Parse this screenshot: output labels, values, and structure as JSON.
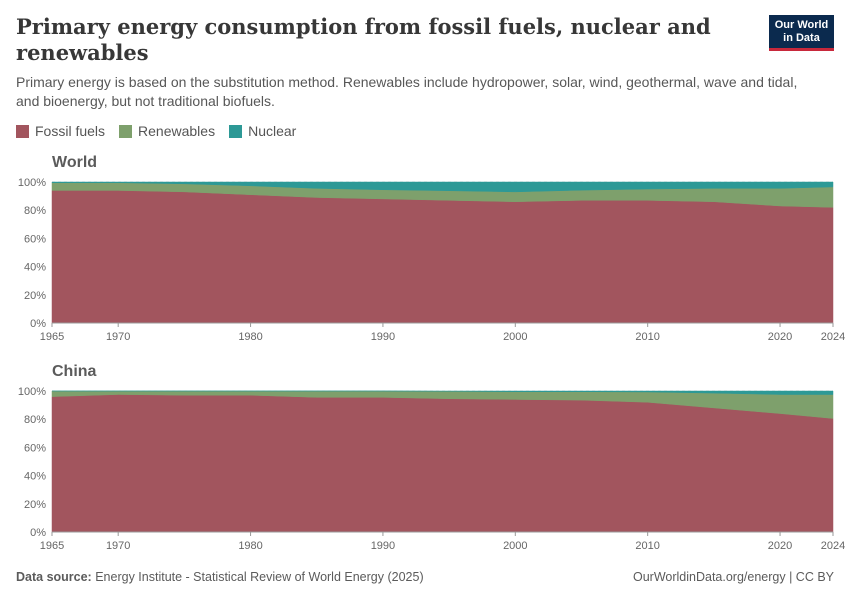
{
  "header": {
    "title": "Primary energy consumption from fossil fuels, nuclear and renewables",
    "subtitle": "Primary energy is based on the substitution method. Renewables include hydropower, solar, wind, geothermal, wave and tidal, and bioenergy, but not traditional biofuels.",
    "logo_line1": "Our World",
    "logo_line2": "in Data"
  },
  "footer": {
    "source_label": "Data source:",
    "source_text": "Energy Institute - Statistical Review of World Energy (2025)",
    "credit": "OurWorldinData.org/energy | CC BY"
  },
  "chart_data": [
    {
      "type": "area",
      "stacked": true,
      "panel_title": "World",
      "x": [
        1965,
        1970,
        1975,
        1980,
        1985,
        1990,
        1995,
        2000,
        2005,
        2010,
        2015,
        2020,
        2024
      ],
      "series": [
        {
          "name": "Fossil fuels",
          "color": "#a2555e",
          "values": [
            94,
            94,
            93,
            91,
            89,
            88,
            87,
            86,
            87,
            87,
            86,
            83,
            82
          ]
        },
        {
          "name": "Renewables",
          "color": "#7ea06c",
          "values": [
            5.5,
            5.5,
            5.7,
            6.3,
            6.5,
            6.5,
            6.8,
            7.0,
            7.2,
            8.0,
            9.5,
            12.5,
            14.5
          ]
        },
        {
          "name": "Nuclear",
          "color": "#2d9996",
          "values": [
            0.5,
            0.5,
            1.3,
            2.7,
            4.5,
            5.5,
            6.2,
            7.0,
            5.8,
            5.0,
            4.5,
            4.5,
            3.5
          ]
        }
      ],
      "ylim": [
        0,
        100
      ],
      "yticks": [
        "0%",
        "20%",
        "40%",
        "60%",
        "80%",
        "100%"
      ],
      "xticks": [
        "1965",
        "1970",
        "1980",
        "1990",
        "2000",
        "2010",
        "2020",
        "2024"
      ]
    },
    {
      "type": "area",
      "stacked": true,
      "panel_title": "China",
      "x": [
        1965,
        1970,
        1975,
        1980,
        1985,
        1990,
        1995,
        2000,
        2005,
        2010,
        2015,
        2020,
        2024
      ],
      "series": [
        {
          "name": "Fossil fuels",
          "color": "#a2555e",
          "values": [
            96,
            97.5,
            97,
            97,
            95.5,
            95.5,
            94.5,
            94,
            93.5,
            92,
            88,
            84,
            80.5
          ]
        },
        {
          "name": "Renewables",
          "color": "#7ea06c",
          "values": [
            4,
            2.5,
            3,
            3,
            4.5,
            4.5,
            5.3,
            5.5,
            6,
            7.3,
            10.5,
            13.5,
            17
          ]
        },
        {
          "name": "Nuclear",
          "color": "#2d9996",
          "values": [
            0,
            0,
            0,
            0,
            0,
            0,
            0.2,
            0.5,
            0.5,
            0.7,
            1.5,
            2.5,
            2.5
          ]
        }
      ],
      "ylim": [
        0,
        100
      ],
      "yticks": [
        "0%",
        "20%",
        "40%",
        "60%",
        "80%",
        "100%"
      ],
      "xticks": [
        "1965",
        "1970",
        "1980",
        "1990",
        "2000",
        "2010",
        "2020",
        "2024"
      ]
    }
  ],
  "legend": [
    {
      "label": "Fossil fuels",
      "color": "#a2555e"
    },
    {
      "label": "Renewables",
      "color": "#7ea06c"
    },
    {
      "label": "Nuclear",
      "color": "#2d9996"
    }
  ]
}
